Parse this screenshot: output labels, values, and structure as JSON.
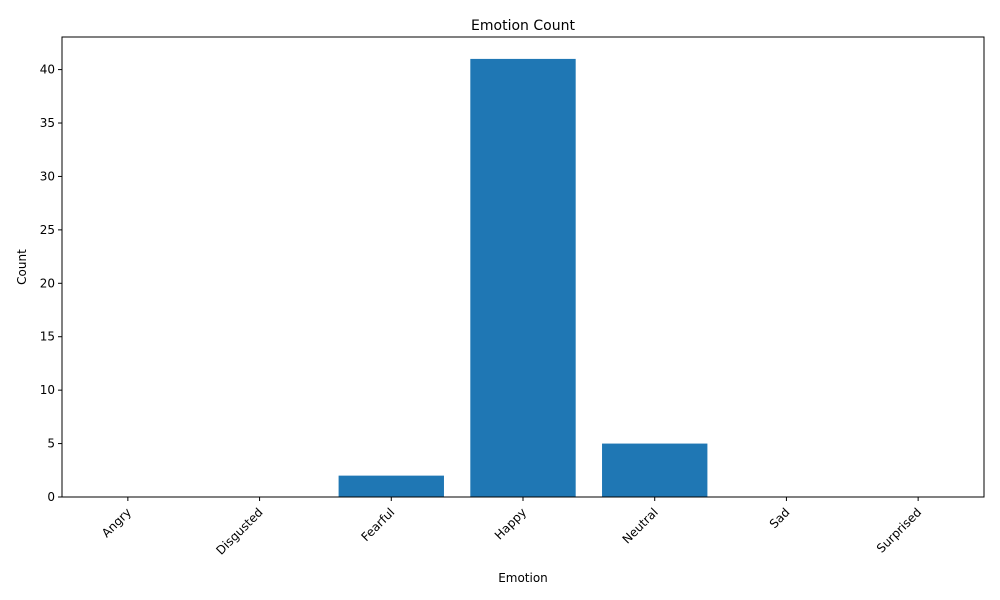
{
  "chart_data": {
    "type": "bar",
    "title": "Emotion Count",
    "xlabel": "Emotion",
    "ylabel": "Count",
    "categories": [
      "Angry",
      "Disgusted",
      "Fearful",
      "Happy",
      "Neutral",
      "Sad",
      "Surprised"
    ],
    "values": [
      0,
      0,
      2,
      41,
      5,
      0,
      0
    ],
    "ylim": [
      0,
      43.05
    ],
    "yticks": [
      0,
      5,
      10,
      15,
      20,
      25,
      30,
      35,
      40
    ],
    "grid": false,
    "legend": false,
    "bar_color": "#1f77b4",
    "xtick_rotation_deg": 45
  }
}
